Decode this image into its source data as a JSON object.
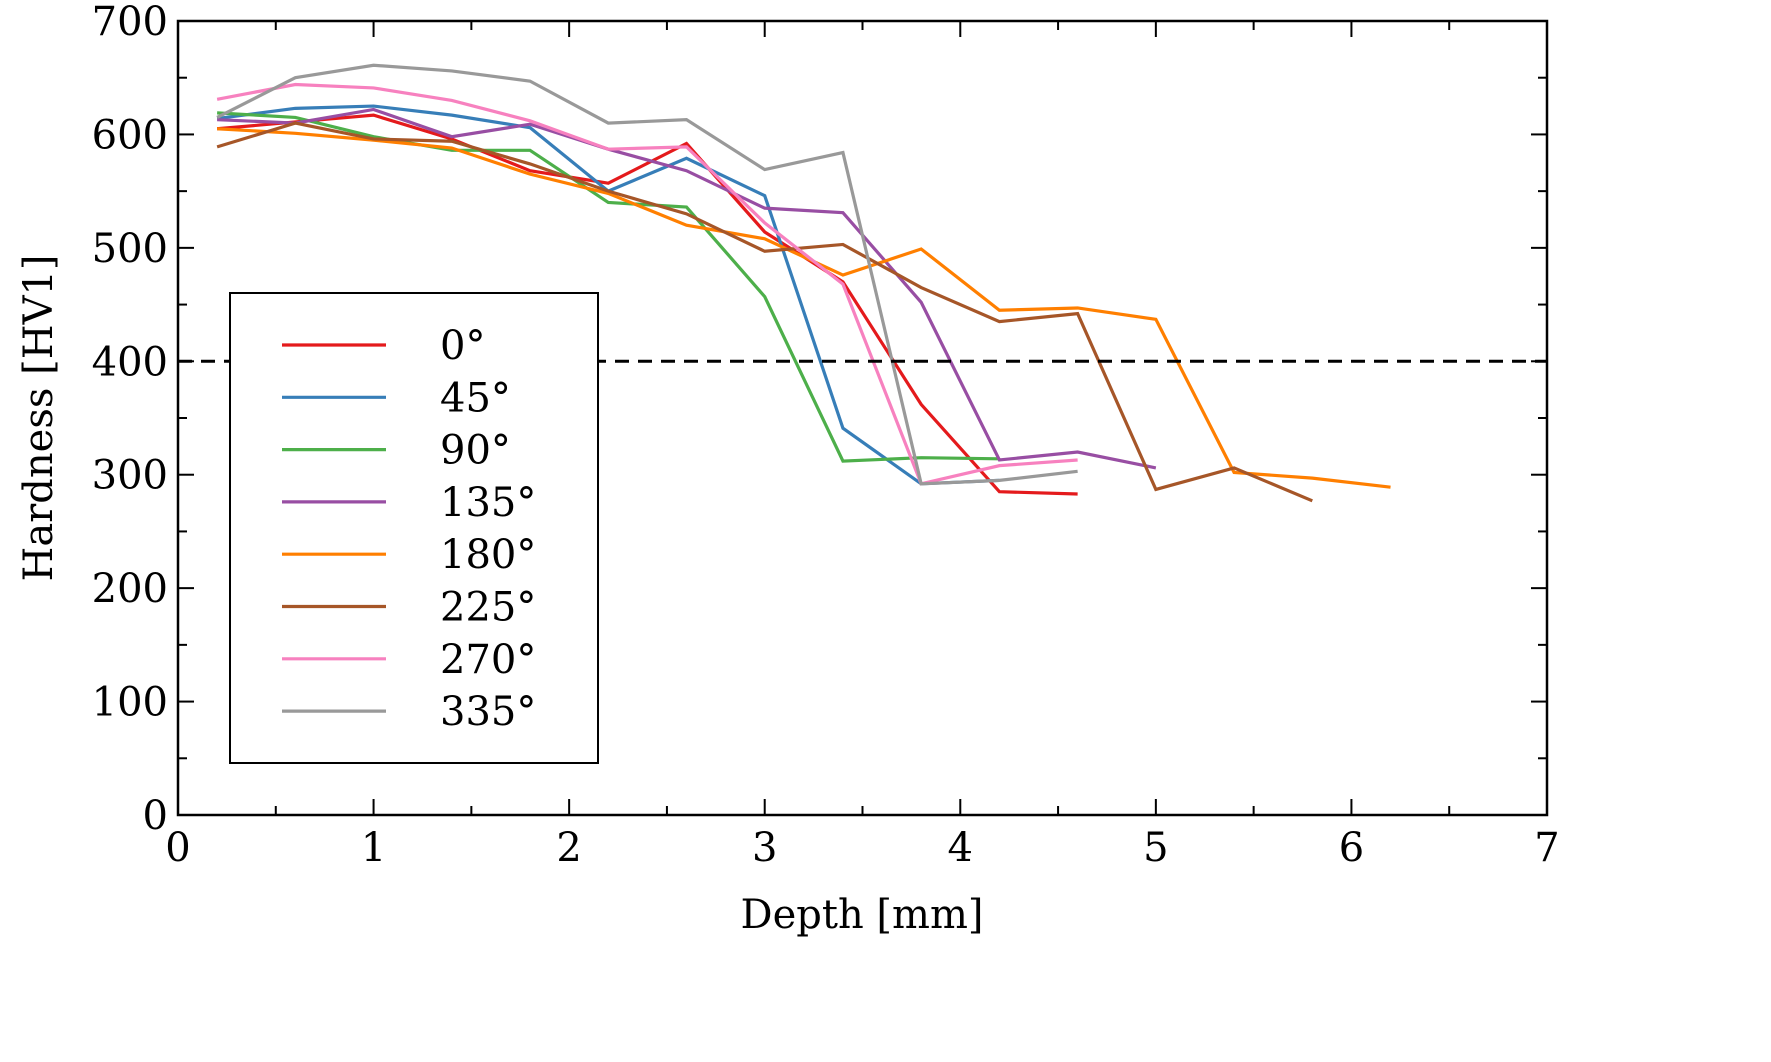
{
  "chart_data": {
    "type": "line",
    "title": "",
    "xlabel": "Depth [mm]",
    "ylabel": "Hardness [HV1]",
    "xlim": [
      0,
      7
    ],
    "ylim": [
      0,
      700
    ],
    "xticks": [
      0,
      1,
      2,
      3,
      4,
      5,
      6,
      7
    ],
    "yticks": [
      0,
      100,
      200,
      300,
      400,
      500,
      600,
      700
    ],
    "grid": false,
    "legend_position": "center-left",
    "reference_line": {
      "y": 400,
      "style": "dashed",
      "color": "#000000"
    },
    "series": [
      {
        "name": "0°",
        "color": "#e41a1c",
        "x": [
          0.2,
          0.6,
          1.0,
          1.4,
          1.8,
          2.2,
          2.6,
          3.0,
          3.4,
          3.8,
          4.2,
          4.6
        ],
        "y": [
          605,
          611,
          617,
          596,
          568,
          557,
          592,
          514,
          470,
          362,
          285,
          283
        ]
      },
      {
        "name": "45°",
        "color": "#377eb8",
        "x": [
          0.2,
          0.6,
          1.0,
          1.4,
          1.8,
          2.2,
          2.6,
          3.0,
          3.4,
          3.8,
          4.2
        ],
        "y": [
          614,
          623,
          625,
          617,
          606,
          550,
          579,
          546,
          341,
          292,
          295
        ]
      },
      {
        "name": "90°",
        "color": "#4daf4a",
        "x": [
          0.2,
          0.6,
          1.0,
          1.4,
          1.8,
          2.2,
          2.6,
          3.0,
          3.4,
          3.8,
          4.2
        ],
        "y": [
          619,
          615,
          598,
          586,
          586,
          540,
          536,
          457,
          312,
          315,
          314
        ]
      },
      {
        "name": "135°",
        "color": "#984ea3",
        "x": [
          0.2,
          0.6,
          1.0,
          1.4,
          1.8,
          2.2,
          2.6,
          3.0,
          3.4,
          3.8,
          4.2,
          4.6,
          5.0
        ],
        "y": [
          613,
          610,
          622,
          598,
          609,
          587,
          568,
          535,
          531,
          452,
          313,
          320,
          306
        ]
      },
      {
        "name": "180°",
        "color": "#ff7f00",
        "x": [
          0.2,
          0.6,
          1.0,
          1.4,
          1.8,
          2.2,
          2.6,
          3.0,
          3.4,
          3.8,
          4.2,
          4.6,
          5.0,
          5.4,
          5.8,
          6.2
        ],
        "y": [
          605,
          601,
          595,
          588,
          565,
          548,
          520,
          508,
          476,
          499,
          445,
          447,
          437,
          302,
          297,
          289
        ]
      },
      {
        "name": "225°",
        "color": "#a65628",
        "x": [
          0.2,
          0.6,
          1.0,
          1.4,
          1.8,
          2.2,
          2.6,
          3.0,
          3.4,
          3.8,
          4.2,
          4.6,
          5.0,
          5.4,
          5.8
        ],
        "y": [
          589,
          610,
          596,
          594,
          574,
          550,
          530,
          497,
          503,
          465,
          435,
          442,
          287,
          306,
          277
        ]
      },
      {
        "name": "270°",
        "color": "#f781bf",
        "x": [
          0.2,
          0.6,
          1.0,
          1.4,
          1.8,
          2.2,
          2.6,
          3.0,
          3.4,
          3.8,
          4.2,
          4.6
        ],
        "y": [
          631,
          644,
          641,
          630,
          612,
          587,
          589,
          522,
          468,
          292,
          308,
          313
        ]
      },
      {
        "name": "335°",
        "color": "#999999",
        "x": [
          0.2,
          0.6,
          1.0,
          1.4,
          1.8,
          2.2,
          2.6,
          3.0,
          3.4,
          3.8,
          4.2,
          4.6
        ],
        "y": [
          615,
          650,
          661,
          656,
          647,
          610,
          613,
          569,
          584,
          292,
          295,
          303
        ]
      }
    ]
  }
}
